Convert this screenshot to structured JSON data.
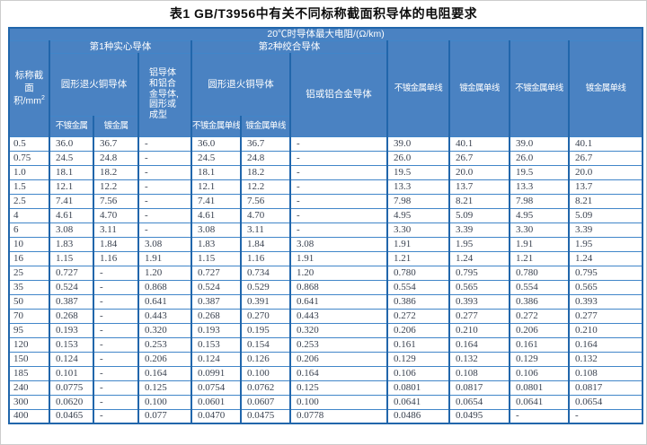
{
  "title": "表1  GB/T3956中有关不同标称截面积导体的电阻要求",
  "table": {
    "header": {
      "row1": "20℃时导体最大电阻/(Ω/km)",
      "area_label": "标称截面积/mm",
      "area_sup": "2",
      "group1": "第1种实心导体",
      "group2": "第2种绞合导体",
      "g1_copper": "圆形退火铜导体",
      "g1_alu": "铝导体和铝合金导体,圆形或成型",
      "g2_copper": "圆形退火铜导体",
      "g2_alu": "铝或铝合金导体",
      "g1_sub": [
        "不镀金属",
        "镀金属"
      ],
      "g2_sub": [
        "不镀金属单线",
        "镀金属单线"
      ],
      "tall_cols": [
        "不镀金属单线",
        "镀金属单线",
        "不镀金属单线",
        "镀金属单线"
      ]
    },
    "rows": [
      [
        "0.5",
        "36.0",
        "36.7",
        "-",
        "36.0",
        "36.7",
        "-",
        "39.0",
        "40.1",
        "39.0",
        "40.1"
      ],
      [
        "0.75",
        "24.5",
        "24.8",
        "-",
        "24.5",
        "24.8",
        "-",
        "26.0",
        "26.7",
        "26.0",
        "26.7"
      ],
      [
        "1.0",
        "18.1",
        "18.2",
        "-",
        "18.1",
        "18.2",
        "-",
        "19.5",
        "20.0",
        "19.5",
        "20.0"
      ],
      [
        "1.5",
        "12.1",
        "12.2",
        "-",
        "12.1",
        "12.2",
        "-",
        "13.3",
        "13.7",
        "13.3",
        "13.7"
      ],
      [
        "2.5",
        "7.41",
        "7.56",
        "-",
        "7.41",
        "7.56",
        "-",
        "7.98",
        "8.21",
        "7.98",
        "8.21"
      ],
      [
        "4",
        "4.61",
        "4.70",
        "-",
        "4.61",
        "4.70",
        "-",
        "4.95",
        "5.09",
        "4.95",
        "5.09"
      ],
      [
        "6",
        "3.08",
        "3.11",
        "-",
        "3.08",
        "3.11",
        "-",
        "3.30",
        "3.39",
        "3.30",
        "3.39"
      ],
      [
        "10",
        "1.83",
        "1.84",
        "3.08",
        "1.83",
        "1.84",
        "3.08",
        "1.91",
        "1.95",
        "1.91",
        "1.95"
      ],
      [
        "16",
        "1.15",
        "1.16",
        "1.91",
        "1.15",
        "1.16",
        "1.91",
        "1.21",
        "1.24",
        "1.21",
        "1.24"
      ],
      [
        "25",
        "0.727",
        "-",
        "1.20",
        "0.727",
        "0.734",
        "1.20",
        "0.780",
        "0.795",
        "0.780",
        "0.795"
      ],
      [
        "35",
        "0.524",
        "-",
        "0.868",
        "0.524",
        "0.529",
        "0.868",
        "0.554",
        "0.565",
        "0.554",
        "0.565"
      ],
      [
        "50",
        "0.387",
        "-",
        "0.641",
        "0.387",
        "0.391",
        "0.641",
        "0.386",
        "0.393",
        "0.386",
        "0.393"
      ],
      [
        "70",
        "0.268",
        "-",
        "0.443",
        "0.268",
        "0.270",
        "0.443",
        "0.272",
        "0.277",
        "0.272",
        "0.277"
      ],
      [
        "95",
        "0.193",
        "-",
        "0.320",
        "0.193",
        "0.195",
        "0.320",
        "0.206",
        "0.210",
        "0.206",
        "0.210"
      ],
      [
        "120",
        "0.153",
        "-",
        "0.253",
        "0.153",
        "0.154",
        "0.253",
        "0.161",
        "0.164",
        "0.161",
        "0.164"
      ],
      [
        "150",
        "0.124",
        "-",
        "0.206",
        "0.124",
        "0.126",
        "0.206",
        "0.129",
        "0.132",
        "0.129",
        "0.132"
      ],
      [
        "185",
        "0.101",
        "-",
        "0.164",
        "0.0991",
        "0.100",
        "0.164",
        "0.106",
        "0.108",
        "0.106",
        "0.108"
      ],
      [
        "240",
        "0.0775",
        "-",
        "0.125",
        "0.0754",
        "0.0762",
        "0.125",
        "0.0801",
        "0.0817",
        "0.0801",
        "0.0817"
      ],
      [
        "300",
        "0.0620",
        "-",
        "0.100",
        "0.0601",
        "0.0607",
        "0.100",
        "0.0641",
        "0.0654",
        "0.0641",
        "0.0654"
      ],
      [
        "400",
        "0.0465",
        "-",
        "0.077",
        "0.0470",
        "0.0475",
        "0.0778",
        "0.0486",
        "0.0495",
        "-",
        "-"
      ]
    ]
  },
  "colors": {
    "header_bg": "#4a82c2",
    "border_dark": "#2166ab",
    "border_light": "#4186c9",
    "header_text": "#ffffff",
    "data_text": "#3a4250",
    "title_text": "#0c0c0c"
  }
}
